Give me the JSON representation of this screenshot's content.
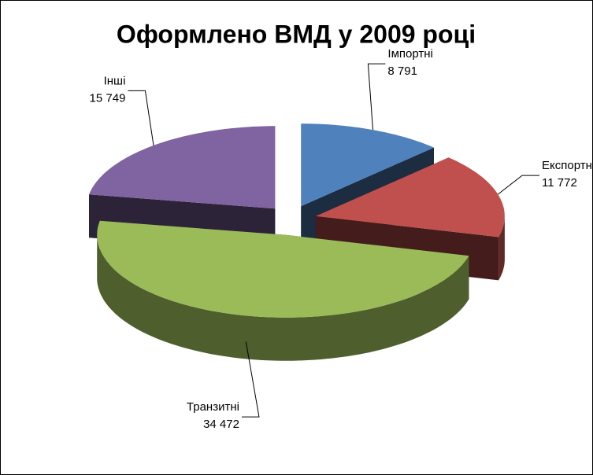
{
  "chart_data": {
    "type": "pie",
    "title": "Оформлено ВМД у 2009 році",
    "categories": [
      "Імпортні",
      "Експортні",
      "Транзитні",
      "Інші"
    ],
    "values": [
      8791,
      11772,
      34472,
      15749
    ],
    "value_labels": [
      "8 791",
      "11 772",
      "34 472",
      "15 749"
    ],
    "colors": [
      "#4f81bd",
      "#c0504d",
      "#9bbb59",
      "#8064a2"
    ]
  }
}
